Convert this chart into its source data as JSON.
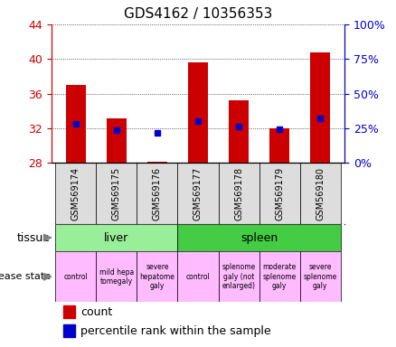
{
  "title": "GDS4162 / 10356353",
  "samples": [
    "GSM569174",
    "GSM569175",
    "GSM569176",
    "GSM569177",
    "GSM569178",
    "GSM569179",
    "GSM569180"
  ],
  "count_values": [
    37.0,
    33.2,
    28.2,
    39.6,
    35.2,
    32.0,
    40.8
  ],
  "count_bottom": [
    28.0,
    28.0,
    28.0,
    28.0,
    28.0,
    28.0,
    28.0
  ],
  "percentile_values": [
    32.5,
    31.8,
    31.5,
    32.8,
    32.2,
    31.9,
    33.2
  ],
  "ylim": [
    28,
    44
  ],
  "yticks_left": [
    28,
    32,
    36,
    40,
    44
  ],
  "yticks_right": [
    0,
    25,
    50,
    75,
    100
  ],
  "bar_color": "#cc0000",
  "percentile_color": "#0000cc",
  "tissue_groups": [
    {
      "label": "liver",
      "start": 0,
      "end": 3,
      "color": "#99ee99"
    },
    {
      "label": "spleen",
      "start": 3,
      "end": 7,
      "color": "#44cc44"
    }
  ],
  "disease_states": [
    {
      "label": "control",
      "color": "#ffbbff"
    },
    {
      "label": "mild hepa\ntomegaly",
      "color": "#ffbbff"
    },
    {
      "label": "severe\nhepatome\ngaly",
      "color": "#ffbbff"
    },
    {
      "label": "control",
      "color": "#ffbbff"
    },
    {
      "label": "splenome\ngaly (not\nenlarged)",
      "color": "#ffbbff"
    },
    {
      "label": "moderate\nsplenome\ngaly",
      "color": "#ffbbff"
    },
    {
      "label": "severe\nsplenome\ngaly",
      "color": "#ffbbff"
    }
  ],
  "left_axis_color": "#cc0000",
  "right_axis_color": "#0000cc",
  "tissue_label": "tissue",
  "disease_label": "disease state",
  "legend_count_label": "count",
  "legend_percentile_label": "percentile rank within the sample",
  "sample_box_color": "#dddddd"
}
